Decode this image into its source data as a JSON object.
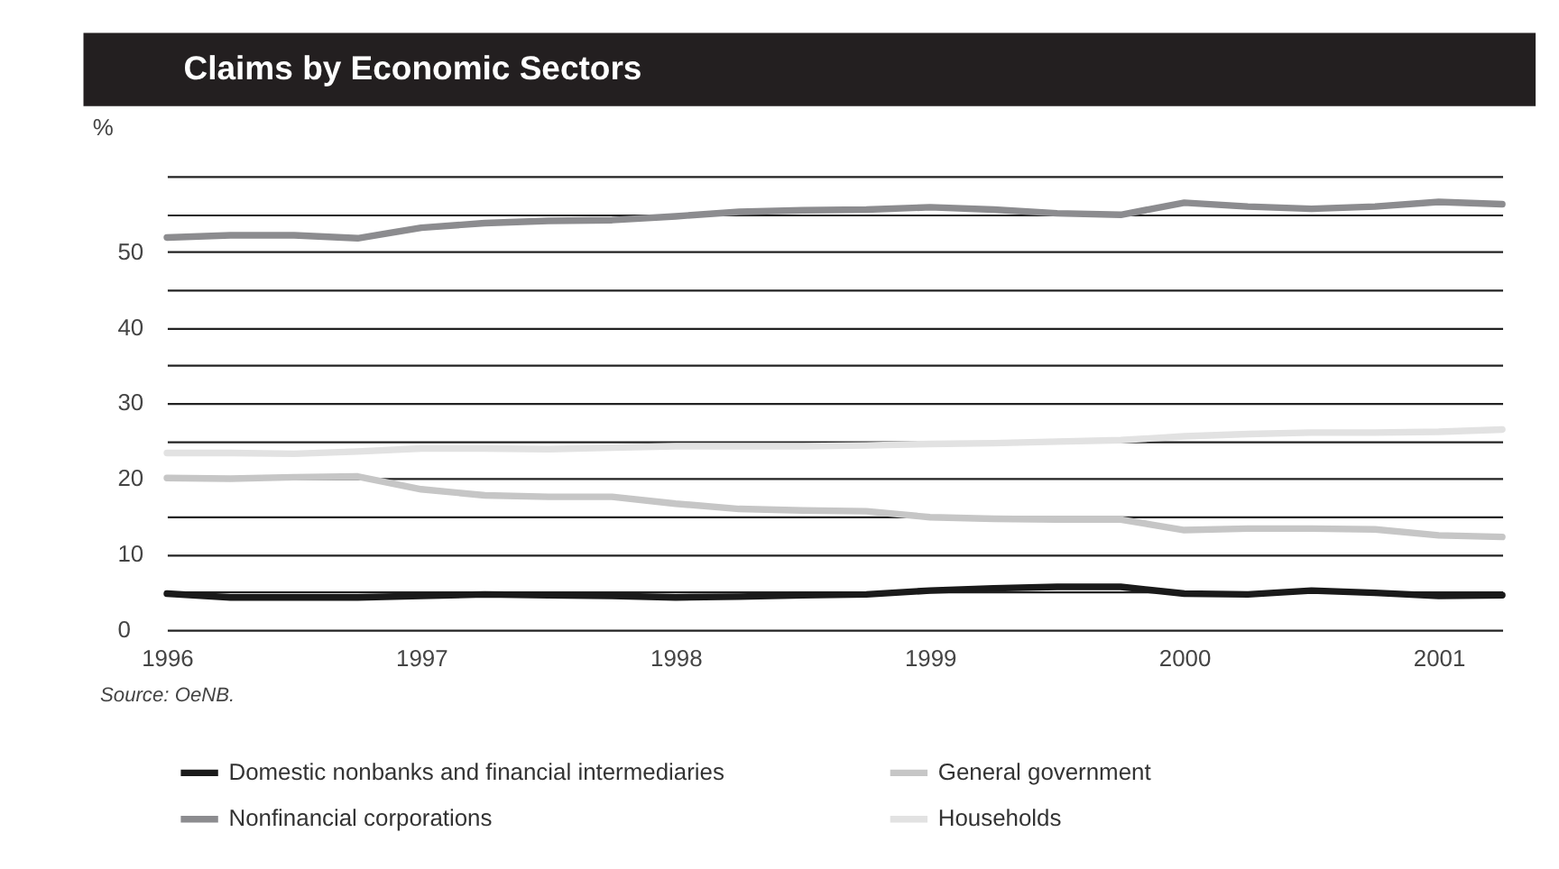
{
  "chart_data": {
    "type": "line",
    "title": "Claims by Economic Sectors",
    "ylabel": "%",
    "x": [
      1996.0,
      1996.25,
      1996.5,
      1996.75,
      1997.0,
      1997.25,
      1997.5,
      1997.75,
      1998.0,
      1998.25,
      1998.5,
      1998.75,
      1999.0,
      1999.25,
      1999.5,
      1999.75,
      2000.0,
      2000.25,
      2000.5,
      2000.75,
      2001.0,
      2001.25
    ],
    "series": [
      {
        "name": "Domestic nonbanks and financial intermediaries",
        "color": "#1a1a1a",
        "values": [
          4.8,
          4.3,
          4.3,
          4.3,
          4.5,
          4.7,
          4.6,
          4.5,
          4.3,
          4.4,
          4.6,
          4.7,
          5.2,
          5.5,
          5.7,
          5.7,
          4.8,
          4.7,
          5.2,
          4.9,
          4.5,
          4.6
        ]
      },
      {
        "name": "General government",
        "color": "#c6c6c6",
        "values": [
          20.1,
          20.0,
          20.2,
          20.3,
          18.6,
          17.8,
          17.6,
          17.6,
          16.7,
          16.0,
          15.8,
          15.7,
          14.9,
          14.7,
          14.6,
          14.6,
          13.2,
          13.4,
          13.4,
          13.3,
          12.5,
          12.3
        ]
      },
      {
        "name": "Nonfinancial corporations",
        "color": "#8c8c8f",
        "values": [
          51.9,
          52.2,
          52.2,
          51.8,
          53.2,
          53.8,
          54.1,
          54.2,
          54.7,
          55.3,
          55.5,
          55.6,
          55.9,
          55.6,
          55.1,
          54.9,
          56.5,
          56.0,
          55.7,
          56.0,
          56.6,
          56.3
        ]
      },
      {
        "name": "Households",
        "color": "#e2e2e2",
        "values": [
          23.4,
          23.4,
          23.3,
          23.6,
          24.0,
          24.0,
          23.9,
          24.1,
          24.3,
          24.3,
          24.3,
          24.4,
          24.6,
          24.7,
          24.9,
          25.1,
          25.6,
          25.9,
          26.1,
          26.1,
          26.2,
          26.5
        ]
      }
    ],
    "xlim": [
      1996,
      2001.25
    ],
    "xticks": [
      1996,
      1997,
      1998,
      1999,
      2000,
      2001
    ],
    "ylim": [
      0,
      60
    ],
    "yticks": [
      0,
      {
        "value": 5,
        "label": null
      },
      10,
      {
        "value": 15,
        "label": null
      },
      20,
      {
        "value": 25,
        "label": null
      },
      30,
      {
        "value": 35,
        "label": null
      },
      40,
      {
        "value": 45,
        "label": null
      },
      50,
      {
        "value": 55,
        "label": null
      },
      {
        "value": 60,
        "label": null
      }
    ],
    "grid": "y",
    "legend": "bottom",
    "line_style": "solid",
    "marker": "none",
    "annotations": [
      "Source: OeNB."
    ]
  }
}
